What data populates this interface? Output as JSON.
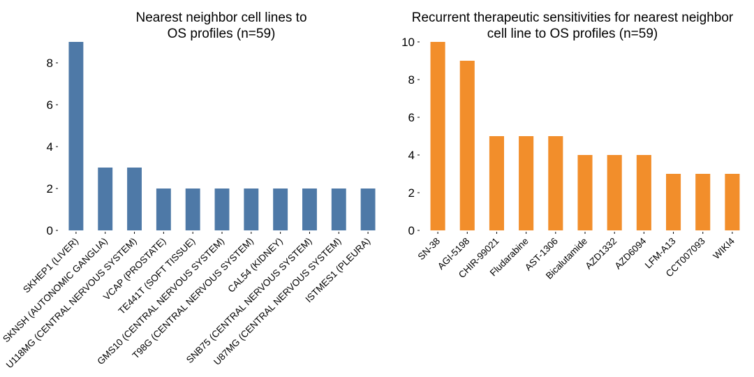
{
  "chart_data": [
    {
      "type": "bar",
      "title_lines": [
        "Nearest neighbor cell lines to",
        "OS profiles (n=59)"
      ],
      "categories": [
        "SKHEP1 (LIVER)",
        "SKNSH (AUTONOMIC GANGLIA)",
        "U118MG (CENTRAL NERVOUS SYSTEM)",
        "VCAP (PROSTATE)",
        "TE441T (SOFT TISSUE)",
        "GMS10 (CENTRAL NERVOUS SYSTEM)",
        "T98G (CENTRAL NERVOUS SYSTEM)",
        "CAL54 (KIDNEY)",
        "SNB75 (CENTRAL NERVOUS SYSTEM)",
        "U87MG (CENTRAL NERVOUS SYSTEM)",
        "ISTMES1 (PLEURA)"
      ],
      "values": [
        9,
        3,
        3,
        2,
        2,
        2,
        2,
        2,
        2,
        2,
        2
      ],
      "ylim": [
        0,
        9
      ],
      "yticks": [
        0,
        2,
        4,
        6,
        8
      ],
      "color": "#4e79a7",
      "grid": false
    },
    {
      "type": "bar",
      "title_lines": [
        "Recurrent therapeutic sensitivities for nearest neighbor",
        "cell line to OS profiles (n=59)"
      ],
      "categories": [
        "SN-38",
        "AGI-5198",
        "CHIR-99021",
        "Fludarabine",
        "AST-1306",
        "Bicalutamide",
        "AZD1332",
        "AZD6094",
        "LFM-A13",
        "CCT007093",
        "WIKI4"
      ],
      "values": [
        10,
        9,
        5,
        5,
        5,
        4,
        4,
        4,
        3,
        3,
        3
      ],
      "ylim": [
        0,
        10
      ],
      "yticks": [
        0,
        2,
        4,
        6,
        8,
        10
      ],
      "color": "#f28e2b",
      "grid": false
    }
  ]
}
